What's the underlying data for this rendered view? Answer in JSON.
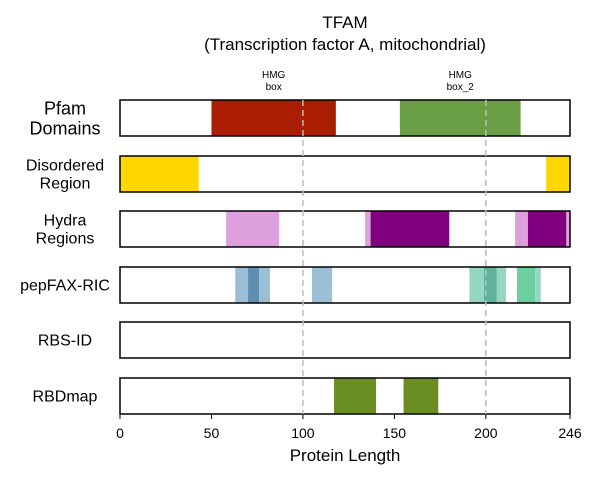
{
  "chart_data": {
    "type": "bar",
    "title": "TFAM",
    "subtitle": "(Transcription factor A, mitochondrial)",
    "xlabel": "Protein Length",
    "xlim": [
      0,
      246
    ],
    "xticks": [
      0,
      50,
      100,
      150,
      200,
      246
    ],
    "vlines": [
      100,
      200
    ],
    "rows": [
      {
        "label_lines": [
          "Pfam",
          "Domains"
        ],
        "segments": [
          {
            "start": 50,
            "end": 118,
            "color": "#a91d03"
          },
          {
            "start": 153,
            "end": 219,
            "color": "#6a9e45"
          }
        ]
      },
      {
        "label_lines": [
          "Disordered",
          "Region"
        ],
        "segments": [
          {
            "start": 0,
            "end": 43,
            "color": "#ffd700"
          },
          {
            "start": 233,
            "end": 246,
            "color": "#ffd700"
          }
        ]
      },
      {
        "label_lines": [
          "Hydra",
          "Regions"
        ],
        "segments": [
          {
            "start": 58,
            "end": 87,
            "color": "#dda0dd"
          },
          {
            "start": 134,
            "end": 137,
            "color": "#dda0dd"
          },
          {
            "start": 137,
            "end": 180,
            "color": "#800080"
          },
          {
            "start": 216,
            "end": 223,
            "color": "#dda0dd"
          },
          {
            "start": 223,
            "end": 244,
            "color": "#800080"
          },
          {
            "start": 244,
            "end": 246,
            "color": "#dda0dd"
          }
        ]
      },
      {
        "label_lines": [
          "pepFAX-RIC"
        ],
        "segments": [
          {
            "start": 63,
            "end": 70,
            "color": "#9bbfd6"
          },
          {
            "start": 70,
            "end": 76,
            "color": "#5e8fb0"
          },
          {
            "start": 76,
            "end": 82,
            "color": "#9bbfd6"
          },
          {
            "start": 105,
            "end": 116,
            "color": "#9bbfd6"
          },
          {
            "start": 191,
            "end": 199,
            "color": "#94d6c2"
          },
          {
            "start": 199,
            "end": 206,
            "color": "#5fb39b"
          },
          {
            "start": 206,
            "end": 211,
            "color": "#94d6c2"
          },
          {
            "start": 217,
            "end": 227,
            "color": "#6ccf9f"
          },
          {
            "start": 227,
            "end": 230,
            "color": "#94d6c2"
          }
        ]
      },
      {
        "label_lines": [
          "RBS-ID"
        ],
        "segments": []
      },
      {
        "label_lines": [
          "RBDmap"
        ],
        "segments": [
          {
            "start": 117,
            "end": 140,
            "color": "#6b8e23"
          },
          {
            "start": 155,
            "end": 174,
            "color": "#6b8e23"
          }
        ]
      }
    ],
    "annotations": [
      {
        "lines": [
          "HMG",
          "box"
        ],
        "x": 84
      },
      {
        "lines": [
          "HMG",
          "box_2"
        ],
        "x": 186
      }
    ]
  }
}
